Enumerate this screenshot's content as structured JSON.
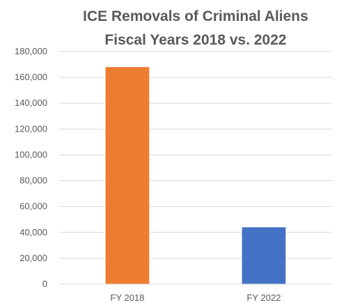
{
  "chart_data": {
    "type": "bar",
    "title_lines": [
      "ICE Removals of Criminal Aliens",
      "Fiscal Years 2018 vs. 2022"
    ],
    "categories": [
      "FY 2018",
      "FY 2022"
    ],
    "values": [
      168000,
      44000
    ],
    "colors": [
      "#ed7d31",
      "#4472c4"
    ],
    "ylim": [
      0,
      180000
    ],
    "yticks": [
      0,
      20000,
      40000,
      60000,
      80000,
      100000,
      120000,
      140000,
      160000,
      180000
    ],
    "ytick_labels": [
      "0",
      "20,000",
      "40,000",
      "60,000",
      "80,000",
      "100,000",
      "120,000",
      "140,000",
      "160,000",
      "180,000"
    ],
    "grid": true,
    "legend": "none"
  }
}
